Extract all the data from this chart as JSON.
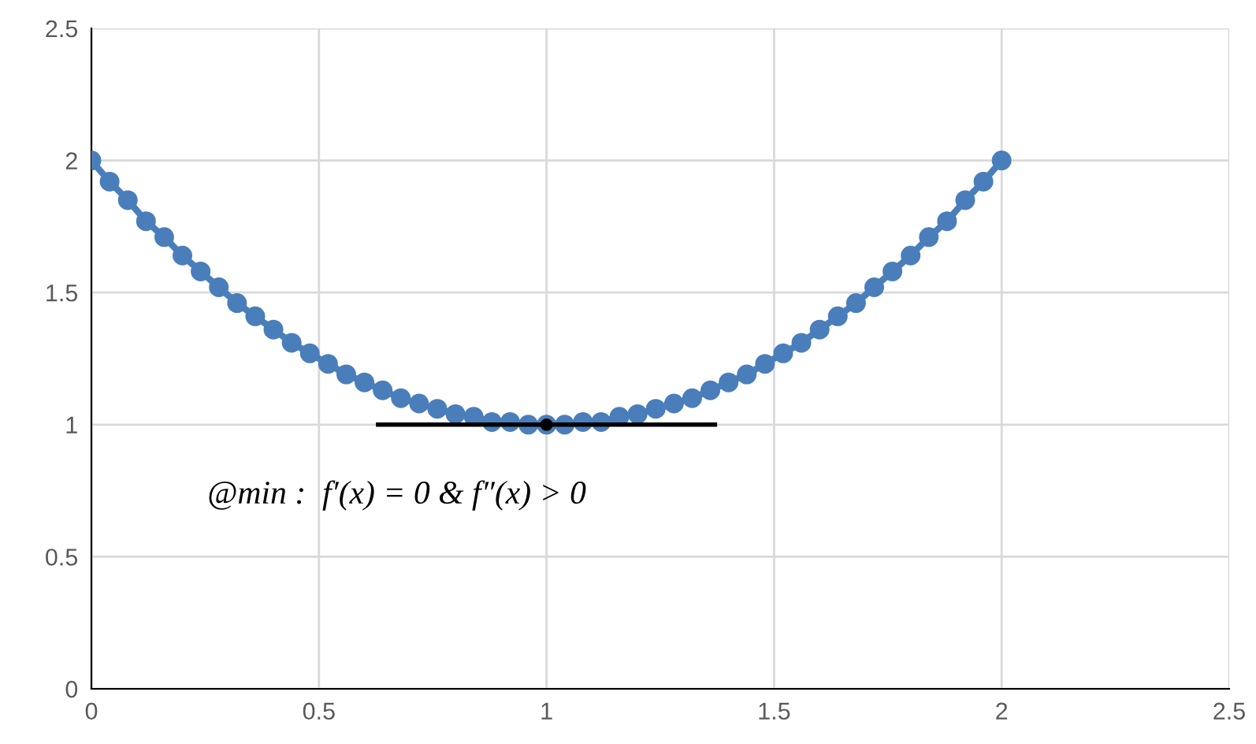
{
  "chart_data": {
    "type": "line",
    "xlim": [
      0,
      2.5
    ],
    "ylim": [
      0,
      2.5
    ],
    "xticks": [
      0,
      0.5,
      1,
      1.5,
      2,
      2.5
    ],
    "yticks": [
      0,
      0.5,
      1,
      1.5,
      2,
      2.5
    ],
    "grid": true,
    "series": [
      {
        "marker": "circle",
        "color": "#4a7ebb",
        "x": [
          0,
          0.04,
          0.08,
          0.12,
          0.16,
          0.2,
          0.24,
          0.28,
          0.32,
          0.36,
          0.4,
          0.44,
          0.48,
          0.52,
          0.56,
          0.6,
          0.64,
          0.68,
          0.72,
          0.76,
          0.8,
          0.84,
          0.88,
          0.92,
          0.96,
          1,
          1.04,
          1.08,
          1.12,
          1.16,
          1.2,
          1.24,
          1.28,
          1.32,
          1.36,
          1.4,
          1.44,
          1.48,
          1.52,
          1.56,
          1.6,
          1.64,
          1.68,
          1.72,
          1.76,
          1.8,
          1.84,
          1.88,
          1.92,
          1.96,
          2
        ],
        "values": [
          2,
          1.92,
          1.85,
          1.77,
          1.71,
          1.64,
          1.58,
          1.52,
          1.46,
          1.41,
          1.36,
          1.31,
          1.27,
          1.23,
          1.19,
          1.16,
          1.13,
          1.1,
          1.08,
          1.06,
          1.04,
          1.03,
          1.01,
          1.01,
          1,
          1,
          1,
          1.01,
          1.01,
          1.03,
          1.04,
          1.06,
          1.08,
          1.1,
          1.13,
          1.16,
          1.19,
          1.23,
          1.27,
          1.31,
          1.36,
          1.41,
          1.46,
          1.52,
          1.58,
          1.64,
          1.71,
          1.77,
          1.85,
          1.92,
          2
        ]
      },
      {
        "type": "line",
        "marker": "none",
        "color": "#000000",
        "x": [
          0.63,
          1.37
        ],
        "values": [
          1,
          1
        ]
      },
      {
        "type": "scatter",
        "marker": "circle",
        "color": "#000000",
        "x": [
          1
        ],
        "values": [
          1
        ]
      }
    ],
    "annotations": [
      {
        "text": "@min :  f′(x) = 0 & f″(x) > 0",
        "x": 1,
        "y": 1
      }
    ]
  }
}
